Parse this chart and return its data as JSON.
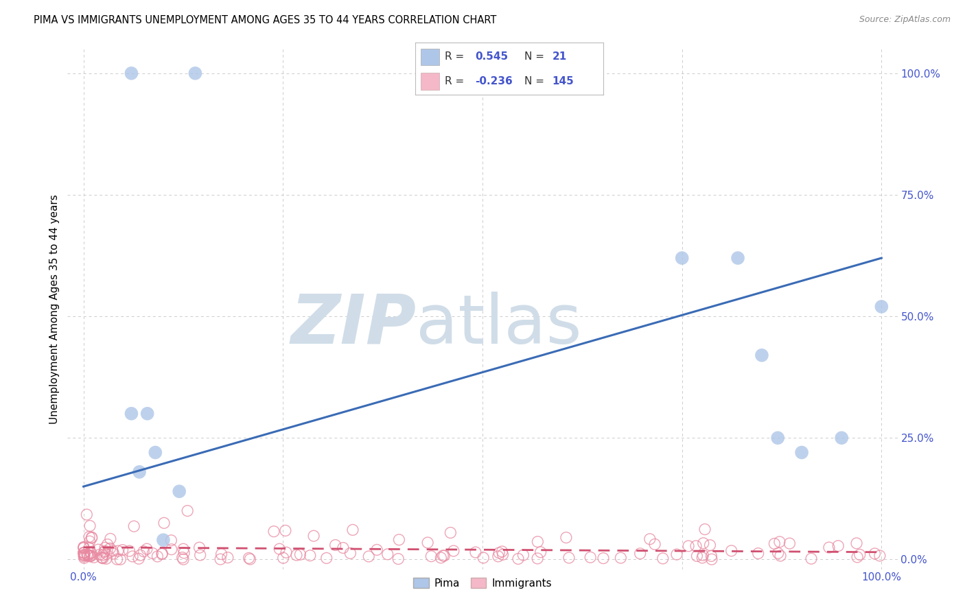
{
  "title": "PIMA VS IMMIGRANTS UNEMPLOYMENT AMONG AGES 35 TO 44 YEARS CORRELATION CHART",
  "source": "Source: ZipAtlas.com",
  "ylabel": "Unemployment Among Ages 35 to 44 years",
  "xlim": [
    -0.02,
    1.02
  ],
  "ylim": [
    -0.02,
    1.05
  ],
  "x_tick_labels": [
    "0.0%",
    "100.0%"
  ],
  "x_tick_positions": [
    0.0,
    1.0
  ],
  "y_tick_labels": [
    "0.0%",
    "25.0%",
    "50.0%",
    "75.0%",
    "100.0%"
  ],
  "y_tick_positions": [
    0.0,
    0.25,
    0.5,
    0.75,
    1.0
  ],
  "pima_R": 0.545,
  "pima_N": 21,
  "immigrants_R": -0.236,
  "immigrants_N": 145,
  "pima_color": "#aec6e8",
  "pima_edge_color": "none",
  "immigrants_color": "#f4b8c8",
  "immigrants_edge_color": "#e888a0",
  "pima_line_color": "#3a6bb5",
  "immigrants_line_color": "#d05070",
  "watermark_zip_color": "#d0dde8",
  "watermark_atlas_color": "#d0dde8",
  "background_color": "#ffffff",
  "grid_color": "#cccccc",
  "tick_color": "#4455cc",
  "pima_line_start_y": 0.15,
  "pima_line_end_y": 0.62,
  "immigrants_line_start_y": 0.025,
  "immigrants_line_end_y": 0.015,
  "pima_points_x": [
    0.06,
    0.06,
    0.07,
    0.08,
    0.09,
    0.1,
    0.12,
    0.14,
    0.75,
    0.82,
    0.85,
    0.87,
    0.9,
    0.95,
    1.0
  ],
  "pima_points_y": [
    1.0,
    0.3,
    0.18,
    0.3,
    0.22,
    0.04,
    0.14,
    1.0,
    0.62,
    0.62,
    0.42,
    0.25,
    0.22,
    0.25,
    0.52
  ],
  "pima_size": 200
}
